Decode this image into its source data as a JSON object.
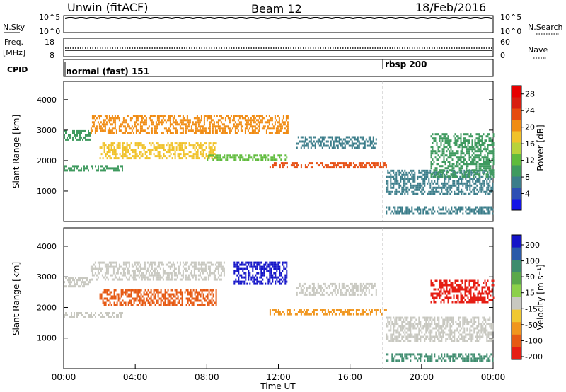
{
  "header": {
    "station": "Unwin (fitACF)",
    "beam": "Beam 12",
    "date": "18/Feb/2016"
  },
  "colors": {
    "power_scale": [
      "#1414e6",
      "#2d4fb4",
      "#3b7d8a",
      "#3f9a5f",
      "#5fbb3c",
      "#b8d23a",
      "#f0c22a",
      "#f08c14",
      "#e64c10",
      "#d81e10",
      "#e60000"
    ],
    "velocity_scale": [
      "#1414c8",
      "#2a5aa8",
      "#3e8c6e",
      "#5aa84a",
      "#8cd04a",
      "#c8c8c0",
      "#f0c832",
      "#f0961e",
      "#e65a14",
      "#e61e14"
    ]
  },
  "top_panels": {
    "noise": {
      "label_top": "N.Sky",
      "ticks_left": [
        "10^5",
        "10^0"
      ],
      "ticks_right": [
        "10^5",
        "10^0"
      ],
      "right_label": "N.Search"
    },
    "freq": {
      "label_top": "Freq.",
      "label_unit": "[MHz]",
      "ticks_left": [
        "18",
        "8"
      ],
      "ticks_right": [
        "60",
        "0"
      ],
      "right_label": "Nave"
    },
    "cpid": {
      "label": "CPID",
      "segments": [
        {
          "name": "normal (fast) 151",
          "start_hour": 0
        },
        {
          "name": "rbsp 200",
          "start_hour": 18
        }
      ]
    }
  },
  "chart_data": [
    {
      "type": "heatmap",
      "title": "",
      "ylabel": "Slant Range [km]",
      "xlabel": "",
      "x_range_hours": [
        0,
        24
      ],
      "ylim": [
        0,
        4600
      ],
      "yticks": [
        1000,
        2000,
        3000,
        4000
      ],
      "colorbar": {
        "label": "Power [dB]",
        "ticks": [
          4,
          8,
          12,
          16,
          20,
          24,
          28
        ],
        "range": [
          0,
          30
        ]
      },
      "regions": [
        {
          "x": [
            0.0,
            1.5
          ],
          "y": [
            2700,
            3000
          ],
          "value": 10
        },
        {
          "x": [
            1.5,
            12.5
          ],
          "y": [
            2900,
            3500
          ],
          "value": 20
        },
        {
          "x": [
            2.0,
            8.5
          ],
          "y": [
            2100,
            2600
          ],
          "value": 18
        },
        {
          "x": [
            0.0,
            3.3
          ],
          "y": [
            1700,
            1850
          ],
          "value": 10
        },
        {
          "x": [
            8.0,
            12.5
          ],
          "y": [
            2000,
            2200
          ],
          "value": 12
        },
        {
          "x": [
            11.5,
            18.0
          ],
          "y": [
            1800,
            1950
          ],
          "value": 22
        },
        {
          "x": [
            13.0,
            17.5
          ],
          "y": [
            2400,
            2800
          ],
          "value": 8
        },
        {
          "x": [
            18.0,
            24.0
          ],
          "y": [
            900,
            1700
          ],
          "value": 6
        },
        {
          "x": [
            18.0,
            24.0
          ],
          "y": [
            250,
            500
          ],
          "value": 6
        },
        {
          "x": [
            20.5,
            24.0
          ],
          "y": [
            1500,
            2900
          ],
          "value": 10
        }
      ]
    },
    {
      "type": "heatmap",
      "title": "",
      "ylabel": "Slant Range [km]",
      "xlabel": "Time UT",
      "x_range_hours": [
        0,
        24
      ],
      "x_ticks": [
        "00:00",
        "04:00",
        "08:00",
        "12:00",
        "16:00",
        "20:00",
        "00:00"
      ],
      "ylim": [
        0,
        4600
      ],
      "yticks": [
        1000,
        2000,
        3000,
        4000
      ],
      "colorbar": {
        "label": "Velocity [m s⁻¹]",
        "ticks": [
          "200",
          "100",
          "50",
          "15",
          "-15",
          "-50",
          "-100",
          "-200"
        ]
      },
      "regions": [
        {
          "x": [
            0.0,
            1.5
          ],
          "y": [
            2700,
            3000
          ],
          "value": 0
        },
        {
          "x": [
            1.5,
            9.0
          ],
          "y": [
            2900,
            3500
          ],
          "value": 0
        },
        {
          "x": [
            9.5,
            12.5
          ],
          "y": [
            2800,
            3500
          ],
          "value": 200
        },
        {
          "x": [
            2.0,
            8.5
          ],
          "y": [
            2100,
            2600
          ],
          "value": -150
        },
        {
          "x": [
            0.0,
            3.3
          ],
          "y": [
            1700,
            1850
          ],
          "value": 0
        },
        {
          "x": [
            11.5,
            18.0
          ],
          "y": [
            1800,
            1950
          ],
          "value": -60
        },
        {
          "x": [
            13.0,
            17.5
          ],
          "y": [
            2400,
            2800
          ],
          "value": 0
        },
        {
          "x": [
            18.0,
            24.0
          ],
          "y": [
            900,
            1700
          ],
          "value": 10
        },
        {
          "x": [
            18.0,
            24.0
          ],
          "y": [
            250,
            500
          ],
          "value": 40
        },
        {
          "x": [
            20.5,
            24.0
          ],
          "y": [
            2200,
            2900
          ],
          "value": -200
        }
      ]
    }
  ]
}
